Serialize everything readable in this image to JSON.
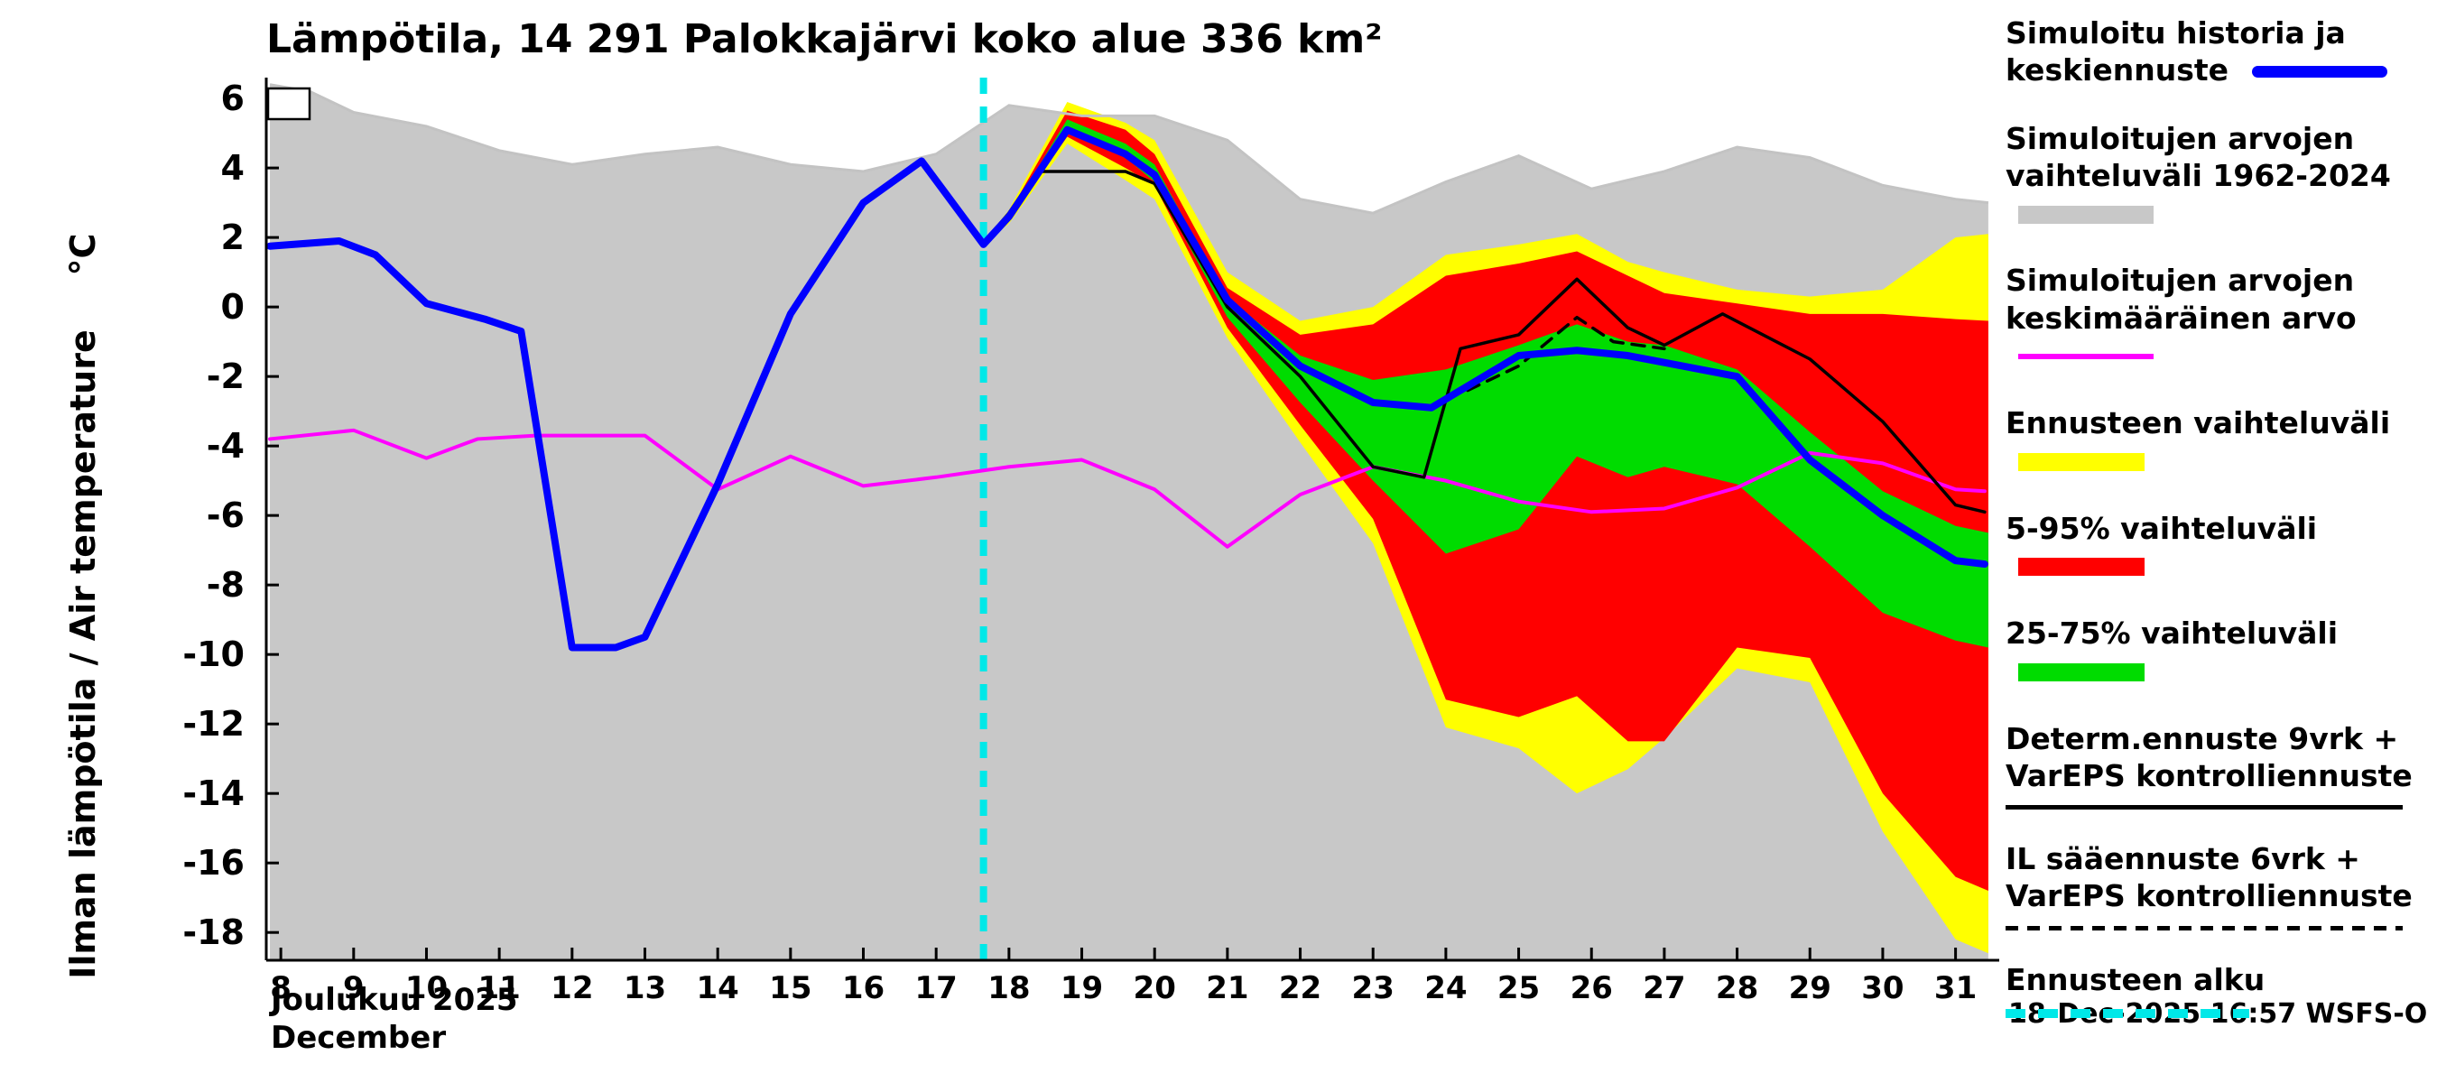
{
  "title": "Lämpötila, 14 291 Palokkajärvi koko alue 336 km²",
  "axes": {
    "ylabel": "Ilman lämpötila / Air temperature",
    "ylabel_unit": "°C",
    "month_fi": "Joulukuu 2025",
    "month_en": "December"
  },
  "footer": {
    "timestamp": "18-Dec-2025 16:57 WSFS-O"
  },
  "legend": {
    "items": [
      {
        "label": "Simuloitu historia ja keskiennuste",
        "color": "#0000ff"
      },
      {
        "label": "Simuloitujen arvojen vaihteluväli 1962-2024",
        "color": "#c8c8c8"
      },
      {
        "label": "Simuloitujen arvojen keskimääräinen arvo",
        "color": "#ff00ff"
      },
      {
        "label": "Ennusteen vaihteluväli",
        "color": "#ffff00"
      },
      {
        "label": "5-95% vaihteluväli",
        "color": "#ff0000"
      },
      {
        "label": "25-75% vaihteluväli",
        "color": "#00dc00"
      },
      {
        "label": "Determ.ennuste 9vrk + VarEPS kontrolliennuste",
        "color": "#000000"
      },
      {
        "label": "IL sääennuste 6vrk + VarEPS kontrolliennuste",
        "color": "#000000",
        "dash": [
          14,
          10
        ]
      },
      {
        "label": "Ennusteen alku",
        "color": "#00e8e8",
        "dash": [
          22,
          14
        ]
      }
    ]
  },
  "chart_data": {
    "type": "line",
    "title": "Lämpötila, 14 291 Palokkajärvi koko alue 336 km²",
    "xlabel": "Joulukuu 2025 / December",
    "ylabel": "Ilman lämpötila / Air temperature (°C)",
    "xlim": [
      7.8,
      31.6
    ],
    "ylim": [
      -18.8,
      6.6
    ],
    "xticks": [
      8,
      9,
      10,
      11,
      12,
      13,
      14,
      15,
      16,
      17,
      18,
      19,
      20,
      21,
      22,
      23,
      24,
      25,
      26,
      27,
      28,
      29,
      30,
      31
    ],
    "yticks": [
      6,
      4,
      2,
      0,
      -2,
      -4,
      -6,
      -8,
      -10,
      -12,
      -14,
      -16,
      -18
    ],
    "forecast_start_x": 17.65,
    "forecast_line": {
      "name": "ennusteen-alku",
      "color": "#00e8e8",
      "dash": [
        18,
        14
      ]
    },
    "bands": [
      {
        "name": "simuloitujen-arvojen-vaihteluvali-1962-2024",
        "color": "#c8c8c8",
        "edge_color": "#c3c3c3",
        "x": [
          7.85,
          8.4,
          9,
          10,
          11,
          12,
          13,
          14,
          15,
          16,
          17,
          18,
          19,
          20,
          21,
          22,
          23,
          24,
          25,
          26,
          27,
          28,
          29,
          30,
          31,
          31.45
        ],
        "upper": [
          6.4,
          6.2,
          5.6,
          5.2,
          4.5,
          4.1,
          4.4,
          4.6,
          4.1,
          3.9,
          4.4,
          5.8,
          5.5,
          5.5,
          4.8,
          3.1,
          2.7,
          3.6,
          4.35,
          3.4,
          3.9,
          4.6,
          4.3,
          3.5,
          3.1,
          3.0
        ],
        "lower": [
          -18.8,
          -18.8,
          -18.8,
          -18.8,
          -18.8,
          -18.8,
          -18.8,
          -18.8,
          -18.8,
          -18.8,
          -18.8,
          -18.8,
          -18.8,
          -18.8,
          -18.8,
          -18.8,
          -18.8,
          -18.8,
          -18.8,
          -18.8,
          -18.8,
          -18.8,
          -18.8,
          -18.8,
          -18.8,
          -18.8
        ]
      },
      {
        "name": "ennusteen-vaihteluvali",
        "color": "#ffff00",
        "x": [
          17.65,
          18,
          18.8,
          19.6,
          20,
          21,
          22,
          23,
          24,
          25,
          25.8,
          26.5,
          27,
          28,
          29,
          30,
          31,
          31.45
        ],
        "upper": [
          1.8,
          2.8,
          5.9,
          5.3,
          4.8,
          1.0,
          -0.4,
          0.0,
          1.5,
          1.8,
          2.1,
          1.3,
          1.0,
          0.5,
          0.3,
          0.5,
          2.0,
          2.1
        ],
        "lower": [
          1.8,
          2.4,
          4.7,
          3.65,
          3.1,
          -0.9,
          -3.9,
          -6.8,
          -12.1,
          -12.7,
          -14.0,
          -13.3,
          -12.4,
          -10.4,
          -10.8,
          -15.1,
          -18.2,
          -18.6
        ]
      },
      {
        "name": "vaihteluvali-5-95",
        "color": "#ff0000",
        "x": [
          17.65,
          18,
          18.8,
          19.6,
          20,
          21,
          22,
          23,
          24,
          25,
          25.8,
          26.5,
          27,
          28,
          29,
          30,
          31,
          31.45
        ],
        "upper": [
          1.8,
          2.7,
          5.65,
          5.1,
          4.4,
          0.55,
          -0.8,
          -0.5,
          0.9,
          1.25,
          1.6,
          0.9,
          0.4,
          0.1,
          -0.2,
          -0.2,
          -0.35,
          -0.4
        ],
        "lower": [
          1.8,
          2.5,
          4.9,
          4.0,
          3.5,
          -0.6,
          -3.4,
          -6.1,
          -11.3,
          -11.8,
          -11.2,
          -12.5,
          -12.5,
          -9.8,
          -10.1,
          -14.0,
          -16.4,
          -16.8
        ]
      },
      {
        "name": "vaihteluvali-25-75",
        "color": "#00dc00",
        "x": [
          17.65,
          18,
          18.8,
          19.6,
          20,
          21,
          22,
          23,
          24,
          25,
          25.8,
          26.5,
          27,
          28,
          29,
          30,
          31,
          31.45
        ],
        "upper": [
          1.8,
          2.65,
          5.4,
          4.7,
          4.1,
          0.25,
          -1.4,
          -2.1,
          -1.8,
          -1.1,
          -0.5,
          -1.0,
          -1.1,
          -1.8,
          -3.6,
          -5.3,
          -6.3,
          -6.5
        ],
        "lower": [
          1.8,
          2.55,
          5.1,
          4.3,
          3.6,
          -0.3,
          -2.75,
          -5.0,
          -7.1,
          -6.4,
          -4.3,
          -4.9,
          -4.6,
          -5.1,
          -6.9,
          -8.8,
          -9.6,
          -9.8
        ]
      }
    ],
    "lines": [
      {
        "name": "simuloitujen-arvojen-keskimaarainen-arvo",
        "color": "#ff00ff",
        "width": 4,
        "x": [
          7.85,
          9,
          10,
          10.7,
          11.5,
          13,
          14,
          15,
          16,
          17,
          18,
          19,
          20,
          21,
          22,
          23,
          24,
          25,
          26,
          27,
          28,
          29,
          30,
          31,
          31.4
        ],
        "y": [
          -3.8,
          -3.55,
          -4.35,
          -3.8,
          -3.7,
          -3.7,
          -5.25,
          -4.3,
          -5.15,
          -4.9,
          -4.6,
          -4.4,
          -5.25,
          -6.9,
          -5.4,
          -4.6,
          -5.0,
          -5.6,
          -5.9,
          -5.8,
          -5.2,
          -4.2,
          -4.5,
          -5.25,
          -5.3
        ]
      },
      {
        "name": "determ-ennuste-9vrk-vareps-kontrolliennuste",
        "color": "#000000",
        "width": 3.5,
        "x": [
          16,
          16.8,
          17.65,
          18,
          18.4,
          19.6,
          20,
          21,
          22,
          23,
          23.7,
          24.2,
          25,
          25.8,
          26.5,
          27,
          27.8,
          29,
          30,
          31,
          31.4
        ],
        "y": [
          3.0,
          4.25,
          1.85,
          2.7,
          3.9,
          3.9,
          3.55,
          0.0,
          -2.0,
          -4.6,
          -4.9,
          -1.2,
          -0.8,
          0.8,
          -0.6,
          -1.1,
          -0.2,
          -1.5,
          -3.3,
          -5.7,
          -5.9
        ]
      },
      {
        "name": "il-saaennuste-6vrk-vareps-kontrolliennuste",
        "color": "#000000",
        "width": 3.5,
        "dash": [
          14,
          10
        ],
        "x": [
          24.3,
          25,
          25.8,
          26.3,
          27
        ],
        "y": [
          -2.4,
          -1.7,
          -0.3,
          -1.0,
          -1.2
        ]
      },
      {
        "name": "simuloitu-historia-ja-keskiennuste",
        "color": "#0000ff",
        "width": 8,
        "x": [
          7.85,
          8.8,
          9.3,
          10,
          10.8,
          11.3,
          12,
          12.6,
          13,
          14,
          15,
          16,
          16.8,
          17.65,
          18,
          18.8,
          19.6,
          20,
          21,
          22,
          23,
          23.8,
          25,
          25.8,
          26.5,
          27,
          28,
          29,
          30,
          31,
          31.4
        ],
        "y": [
          1.75,
          1.9,
          1.5,
          0.1,
          -0.35,
          -0.7,
          -9.8,
          -9.8,
          -9.5,
          -5.1,
          -0.2,
          3.0,
          4.2,
          1.8,
          2.6,
          5.1,
          4.4,
          3.8,
          0.2,
          -1.7,
          -2.75,
          -2.9,
          -1.4,
          -1.25,
          -1.4,
          -1.6,
          -2.0,
          -4.4,
          -6.0,
          -7.3,
          -7.4
        ]
      }
    ]
  }
}
